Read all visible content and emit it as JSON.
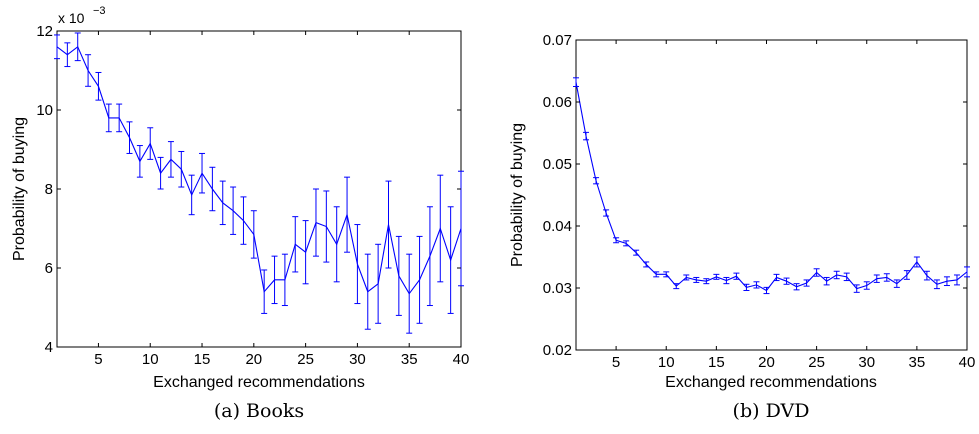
{
  "chart_data": [
    {
      "type": "line",
      "caption": "(a) Books",
      "xlabel": "Exchanged recommendations",
      "ylabel": "Probability of buying",
      "y_exponent_label": "x 10",
      "y_exponent_power": "−3",
      "xlim": [
        1,
        40
      ],
      "ylim": [
        4,
        12
      ],
      "xticks": [
        5,
        10,
        15,
        20,
        25,
        30,
        35,
        40
      ],
      "yticks": [
        4,
        6,
        8,
        10,
        12
      ],
      "grid": false,
      "color": "#0000ff",
      "series": [
        {
          "x": [
            1,
            2,
            3,
            4,
            5,
            6,
            7,
            8,
            9,
            10,
            11,
            12,
            13,
            14,
            15,
            16,
            17,
            18,
            19,
            20,
            21,
            22,
            23,
            24,
            25,
            26,
            27,
            28,
            29,
            30,
            31,
            32,
            33,
            34,
            35,
            36,
            37,
            38,
            39,
            40
          ],
          "y": [
            11.6,
            11.4,
            11.6,
            11.0,
            10.6,
            9.8,
            9.8,
            9.3,
            8.7,
            9.15,
            8.4,
            8.75,
            8.5,
            7.85,
            8.4,
            8.0,
            7.65,
            7.45,
            7.2,
            6.85,
            5.4,
            5.7,
            5.7,
            6.6,
            6.4,
            7.15,
            7.05,
            6.6,
            7.35,
            6.1,
            5.4,
            5.6,
            7.1,
            5.8,
            5.35,
            5.7,
            6.3,
            7.0,
            6.2,
            7.0
          ],
          "error": [
            0.3,
            0.3,
            0.35,
            0.4,
            0.35,
            0.35,
            0.35,
            0.4,
            0.4,
            0.4,
            0.4,
            0.45,
            0.45,
            0.5,
            0.5,
            0.55,
            0.55,
            0.6,
            0.6,
            0.6,
            0.55,
            0.6,
            0.65,
            0.7,
            0.8,
            0.85,
            0.9,
            0.95,
            0.95,
            1.0,
            0.95,
            1.0,
            1.1,
            1.0,
            1.0,
            1.1,
            1.25,
            1.35,
            1.35,
            1.45
          ]
        }
      ]
    },
    {
      "type": "line",
      "caption": "(b) DVD",
      "xlabel": "Exchanged recommendations",
      "ylabel": "Probability of buying",
      "xlim": [
        1,
        40
      ],
      "ylim": [
        0.02,
        0.07
      ],
      "xticks": [
        5,
        10,
        15,
        20,
        25,
        30,
        35,
        40
      ],
      "yticks": [
        0.02,
        0.03,
        0.04,
        0.05,
        0.06,
        0.07
      ],
      "ytick_labels": [
        "0.02",
        "0.03",
        "0.04",
        "0.05",
        "0.06",
        "0.07"
      ],
      "grid": false,
      "color": "#0000ff",
      "series": [
        {
          "x": [
            1,
            2,
            3,
            4,
            5,
            6,
            7,
            8,
            9,
            10,
            11,
            12,
            13,
            14,
            15,
            16,
            17,
            18,
            19,
            20,
            21,
            22,
            23,
            24,
            25,
            26,
            27,
            28,
            29,
            30,
            31,
            32,
            33,
            34,
            35,
            36,
            37,
            38,
            39,
            40
          ],
          "y": [
            0.0632,
            0.0545,
            0.0473,
            0.0421,
            0.0377,
            0.0372,
            0.0357,
            0.0338,
            0.0322,
            0.0322,
            0.0303,
            0.0317,
            0.0313,
            0.0311,
            0.0318,
            0.0312,
            0.0319,
            0.0301,
            0.0305,
            0.0296,
            0.0317,
            0.0311,
            0.0302,
            0.0308,
            0.0325,
            0.0311,
            0.0321,
            0.0318,
            0.0299,
            0.0304,
            0.0315,
            0.0317,
            0.0307,
            0.0321,
            0.0342,
            0.032,
            0.0306,
            0.0311,
            0.0313,
            0.0326
          ],
          "error": [
            0.0007,
            0.0006,
            0.0005,
            0.0005,
            0.0004,
            0.0004,
            0.0004,
            0.0004,
            0.0004,
            0.0004,
            0.0004,
            0.0004,
            0.0004,
            0.0004,
            0.0004,
            0.0005,
            0.0005,
            0.0005,
            0.0005,
            0.0005,
            0.0005,
            0.0005,
            0.0005,
            0.0005,
            0.0006,
            0.0006,
            0.0006,
            0.0006,
            0.0006,
            0.0006,
            0.0006,
            0.0006,
            0.0006,
            0.0007,
            0.0008,
            0.0007,
            0.0007,
            0.0007,
            0.0008,
            0.0008
          ]
        }
      ]
    }
  ]
}
